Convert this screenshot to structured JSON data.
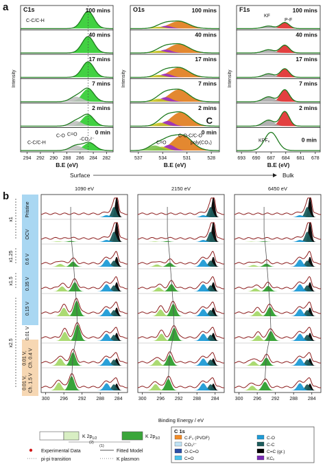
{
  "chart_data": {
    "type": "area",
    "panel_a": {
      "label": "a",
      "axis_xlabel": "B.E (eV)",
      "axis_ylabel": "Intensity",
      "direction_left": "Surface",
      "direction_right": "Bulk",
      "times": [
        "100 mins",
        "40 mins",
        "17 mins",
        "7 mins",
        "2 mins",
        "0 min"
      ],
      "subplots": [
        {
          "id": "C1s",
          "title": "C1s",
          "xlim": [
            295,
            281
          ],
          "xticks": [
            "282",
            "284",
            "286",
            "288",
            "290",
            "292",
            "294"
          ],
          "fill_color": "#2ecc2e",
          "annotations_top": [
            "C-C/C-H"
          ],
          "annotations_bottom": [
            "C-C/C-H",
            "C-O",
            "C=O",
            "-CO₃²⁻"
          ],
          "peaks": [
            {
              "time": "100 mins",
              "center": 284.8,
              "height": 1.0
            },
            {
              "time": "40 mins",
              "center": 284.8,
              "height": 0.95
            },
            {
              "time": "17 mins",
              "center": 284.8,
              "height": 0.9
            },
            {
              "time": "7 mins",
              "center": 284.8,
              "height": 0.75
            },
            {
              "time": "2 mins",
              "center": 284.8,
              "height": 0.65
            },
            {
              "time": "0 min",
              "center": 284.6,
              "height": 0.45
            }
          ]
        },
        {
          "id": "O1s",
          "title": "O1s",
          "xlim": [
            538,
            527
          ],
          "xticks": [
            "528",
            "531",
            "534",
            "537"
          ],
          "fill_colors": [
            "#e07b1a",
            "#9a2fc4",
            "#c8c81e",
            "#7ac14b"
          ],
          "marker": "C",
          "annotations_bottom": [
            "C=O",
            "C-O-C/C-O",
            "poly(CO₃)"
          ],
          "peaks": [
            {
              "time": "100 mins",
              "center": 532.0,
              "height": 0.45
            },
            {
              "time": "40 mins",
              "center": 532.0,
              "height": 0.55
            },
            {
              "time": "17 mins",
              "center": 532.0,
              "height": 0.6
            },
            {
              "time": "7 mins",
              "center": 532.0,
              "height": 0.75
            },
            {
              "time": "2 mins",
              "center": 531.8,
              "height": 0.85
            },
            {
              "time": "0 min",
              "center": 531.6,
              "height": 0.95
            }
          ]
        },
        {
          "id": "F1s",
          "title": "F1s",
          "xlim": [
            694,
            677
          ],
          "xticks": [
            "678",
            "681",
            "684",
            "687",
            "690",
            "693"
          ],
          "fill_colors": [
            "#e02b2b",
            "#a9a9a9"
          ],
          "annotations_top": [
            "KF",
            "P-F"
          ],
          "annotations_bottom": [
            "KPF₆",
            "0 min"
          ],
          "peaks": [
            {
              "time": "100 mins",
              "center": 684.2,
              "height": 0.35
            },
            {
              "time": "40 mins",
              "center": 684.2,
              "height": 0.45
            },
            {
              "time": "17 mins",
              "center": 684.2,
              "height": 0.5
            },
            {
              "time": "7 mins",
              "center": 684.2,
              "height": 0.7
            },
            {
              "time": "2 mins",
              "center": 684.2,
              "height": 0.85
            },
            {
              "time": "0 min",
              "center": 687.0,
              "height": 1.0
            }
          ]
        }
      ]
    },
    "panel_b": {
      "label": "b",
      "xlabel": "Binding Energy / eV",
      "xticks": [
        "300",
        "296",
        "292",
        "288",
        "284"
      ],
      "xlim": [
        301,
        282
      ],
      "energies": [
        "1090 eV",
        "2150 eV",
        "6450 eV"
      ],
      "states": [
        "Pristine",
        "OCV",
        "0.6 V",
        "0.35 V",
        "0.15 V",
        "0.01 V",
        "0.01 V, Ch. 0.4 V",
        "0.01 V, Ch. 1.5 V"
      ],
      "states_lines": [
        [
          "Pristine"
        ],
        [
          "OCV"
        ],
        [
          "0.6 V"
        ],
        [
          "0.35 V"
        ],
        [
          "0.15 V"
        ],
        [
          "0.01 V"
        ],
        [
          "0.01 V,",
          "Ch. 0.4 V"
        ],
        [
          "0.01 V,",
          "Ch. 1.5 V"
        ]
      ],
      "scale_factors": [
        "x1",
        "x1.25",
        "x1.5",
        "x2.5"
      ],
      "k2p_label": "K 2p",
      "k2p_half": "K 2p",
      "k2p_half_sub": "1/2",
      "k2p_3half": "K 2p",
      "k2p_3half_sub": "3/2",
      "k2p_marks": [
        "(2)",
        "(1)"
      ],
      "k_intensity": [
        0,
        0.05,
        0.25,
        0.45,
        0.75,
        0.8,
        0.65,
        0.7
      ],
      "k_center": [
        294.5,
        294.5,
        294.0,
        293.6,
        293.2,
        293.0,
        294.0,
        294.3
      ]
    },
    "legend": {
      "left": [
        {
          "label": "Experimental Data",
          "style": "dot",
          "color": "#d11a1a"
        },
        {
          "label": "pi-pi transition",
          "style": "dotted",
          "color": "#888888"
        },
        {
          "label": "Fitted Model",
          "style": "solid",
          "color": "#555555"
        },
        {
          "label": "K plasmon",
          "style": "dotted",
          "color": "#888888"
        }
      ],
      "c1s_title": "C 1s",
      "c1s_items": [
        {
          "label": "C-F₂ (PVDF)",
          "color": "#f28c28"
        },
        {
          "label": "C-O",
          "color": "#1f9bd6"
        },
        {
          "label": "CO₃²⁻",
          "color": "#bfe3f5"
        },
        {
          "label": "C-C",
          "color": "#1d5c5c"
        },
        {
          "label": "O-C=O",
          "color": "#2b4fa6"
        },
        {
          "label": "C=C (gr.)",
          "color": "#000000"
        },
        {
          "label": "C=O",
          "color": "#4cc3ec"
        },
        {
          "label": "KCₓ",
          "color": "#7a2cb5"
        }
      ]
    }
  }
}
